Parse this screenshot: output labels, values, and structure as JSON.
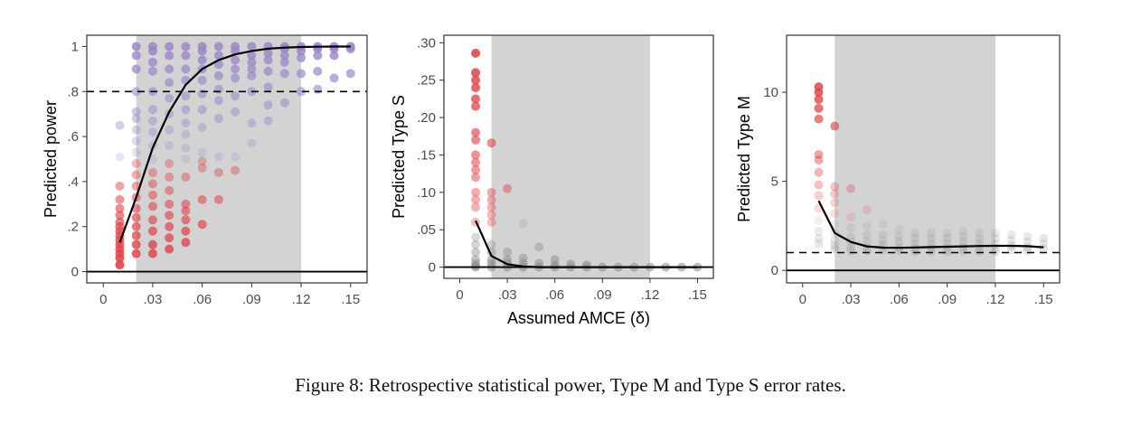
{
  "caption": "Figure 8: Retrospective statistical power, Type M and Type S error rates.",
  "colors": {
    "panel_border": "#333333",
    "shade": "#d3d3d3",
    "curve": "#000000",
    "low_points": "#e0474c",
    "high_points": "#9a86c9",
    "gray_points": "#8c8c8c"
  },
  "chart_data": [
    {
      "type": "scatter",
      "panel": "power",
      "title": "",
      "xlabel": "",
      "ylabel": "Predicted power",
      "xlim": [
        -0.01,
        0.16
      ],
      "ylim": [
        -0.05,
        1.05
      ],
      "x_ticks": [
        {
          "value": 0,
          "label": "0"
        },
        {
          "value": 0.03,
          "label": ".03"
        },
        {
          "value": 0.06,
          "label": ".06"
        },
        {
          "value": 0.09,
          "label": ".09"
        },
        {
          "value": 0.12,
          "label": ".12"
        },
        {
          "value": 0.15,
          "label": ".15"
        }
      ],
      "y_ticks": [
        {
          "value": 0,
          "label": "0"
        },
        {
          "value": 0.2,
          "label": ".2"
        },
        {
          "value": 0.4,
          "label": ".4"
        },
        {
          "value": 0.6,
          "label": ".6"
        },
        {
          "value": 0.8,
          "label": ".8"
        },
        {
          "value": 1,
          "label": "1"
        }
      ],
      "shaded_x_range": [
        0.02,
        0.12
      ],
      "hline_solid": 0,
      "hline_dashed": 0.8,
      "color_scale": "power",
      "curve": {
        "x": [
          0.01,
          0.02,
          0.03,
          0.04,
          0.05,
          0.06,
          0.07,
          0.08,
          0.09,
          0.1,
          0.11,
          0.12,
          0.13,
          0.14,
          0.15
        ],
        "y": [
          0.13,
          0.33,
          0.55,
          0.71,
          0.83,
          0.9,
          0.94,
          0.965,
          0.98,
          0.99,
          0.995,
          0.998,
          0.999,
          1.0,
          1.0
        ]
      },
      "points": [
        {
          "x": 0.01,
          "y": [
            0.03,
            0.06,
            0.08,
            0.1,
            0.12,
            0.14,
            0.16,
            0.18,
            0.2,
            0.22,
            0.25,
            0.28,
            0.32,
            0.38,
            0.51,
            0.65
          ]
        },
        {
          "x": 0.02,
          "y": [
            0.08,
            0.12,
            0.16,
            0.2,
            0.24,
            0.28,
            0.33,
            0.38,
            0.43,
            0.48,
            0.53,
            0.58,
            0.63,
            0.68,
            0.71,
            0.8,
            0.9,
            0.96,
            1.0
          ]
        },
        {
          "x": 0.03,
          "y": [
            0.08,
            0.12,
            0.18,
            0.23,
            0.29,
            0.34,
            0.39,
            0.44,
            0.5,
            0.56,
            0.62,
            0.67,
            0.72,
            0.8,
            0.89,
            0.93,
            0.98,
            1.0
          ]
        },
        {
          "x": 0.04,
          "y": [
            0.1,
            0.15,
            0.2,
            0.25,
            0.3,
            0.36,
            0.42,
            0.48,
            0.56,
            0.63,
            0.7,
            0.77,
            0.84,
            0.9,
            0.96,
            1.0
          ]
        },
        {
          "x": 0.05,
          "y": [
            0.13,
            0.18,
            0.23,
            0.27,
            0.3,
            0.42,
            0.5,
            0.55,
            0.61,
            0.66,
            0.72,
            0.78,
            0.85,
            0.9,
            0.96,
            1.0
          ]
        },
        {
          "x": 0.06,
          "y": [
            0.21,
            0.32,
            0.46,
            0.49,
            0.53,
            0.64,
            0.72,
            0.79,
            0.85,
            0.9,
            0.94,
            0.98,
            1.0
          ]
        },
        {
          "x": 0.07,
          "y": [
            0.32,
            0.44,
            0.51,
            0.68,
            0.76,
            0.81,
            0.87,
            0.92,
            0.96,
            1.0
          ]
        },
        {
          "x": 0.08,
          "y": [
            0.45,
            0.51,
            0.71,
            0.78,
            0.86,
            0.9,
            0.94,
            0.98,
            1.0
          ]
        },
        {
          "x": 0.09,
          "y": [
            0.57,
            0.66,
            0.8,
            0.87,
            0.9,
            0.93,
            0.96,
            1.0
          ]
        },
        {
          "x": 0.1,
          "y": [
            0.67,
            0.74,
            0.82,
            0.89,
            0.94,
            0.97,
            1.0
          ]
        },
        {
          "x": 0.11,
          "y": [
            0.75,
            0.88,
            0.93,
            0.96,
            0.99,
            1.0
          ]
        },
        {
          "x": 0.12,
          "y": [
            0.8,
            0.88,
            0.95,
            0.98,
            1.0
          ]
        },
        {
          "x": 0.13,
          "y": [
            0.81,
            0.89,
            0.96,
            0.99,
            1.0
          ]
        },
        {
          "x": 0.14,
          "y": [
            0.86,
            0.96,
            0.99,
            1.0
          ]
        },
        {
          "x": 0.15,
          "y": [
            0.88,
            0.99,
            1.0
          ]
        }
      ]
    },
    {
      "type": "scatter",
      "panel": "type_s",
      "title": "",
      "xlabel": "Assumed AMCE (δ)",
      "ylabel": "Predicted Type S",
      "xlim": [
        -0.01,
        0.16
      ],
      "ylim": [
        -0.015,
        0.31
      ],
      "x_ticks": [
        {
          "value": 0,
          "label": "0"
        },
        {
          "value": 0.03,
          "label": ".03"
        },
        {
          "value": 0.06,
          "label": ".06"
        },
        {
          "value": 0.09,
          "label": ".09"
        },
        {
          "value": 0.12,
          "label": ".12"
        },
        {
          "value": 0.15,
          "label": ".15"
        }
      ],
      "y_ticks": [
        {
          "value": 0,
          "label": "0"
        },
        {
          "value": 0.05,
          "label": ".05"
        },
        {
          "value": 0.1,
          "label": ".10"
        },
        {
          "value": 0.15,
          "label": ".15"
        },
        {
          "value": 0.2,
          "label": ".20"
        },
        {
          "value": 0.25,
          "label": ".25"
        },
        {
          "value": 0.3,
          "label": ".30"
        }
      ],
      "shaded_x_range": [
        0.02,
        0.12
      ],
      "hline_solid": 0,
      "color_scale": "type_s",
      "curve": {
        "x": [
          0.01,
          0.02,
          0.03,
          0.04,
          0.05,
          0.06,
          0.07,
          0.08,
          0.09,
          0.1,
          0.11,
          0.12,
          0.13,
          0.14,
          0.15
        ],
        "y": [
          0.062,
          0.015,
          0.004,
          0.001,
          0,
          0,
          0,
          0,
          0,
          0,
          0,
          0,
          0,
          0,
          0
        ]
      },
      "points": [
        {
          "x": 0.01,
          "y": [
            0.286,
            0.26,
            0.25,
            0.24,
            0.225,
            0.215,
            0.18,
            0.17,
            0.15,
            0.14,
            0.13,
            0.12,
            0.1,
            0.09,
            0.08,
            0.06,
            0.04,
            0.03,
            0.02,
            0.01,
            0.005,
            0.002,
            0
          ]
        },
        {
          "x": 0.02,
          "y": [
            0.166,
            0.1,
            0.09,
            0.08,
            0.07,
            0.06,
            0.03,
            0.02,
            0.01,
            0.005,
            0
          ]
        },
        {
          "x": 0.03,
          "y": [
            0.105,
            0.02,
            0.01,
            0.005,
            0
          ]
        },
        {
          "x": 0.04,
          "y": [
            0.058,
            0.012,
            0.005,
            0
          ]
        },
        {
          "x": 0.05,
          "y": [
            0.027,
            0.005,
            0
          ]
        },
        {
          "x": 0.06,
          "y": [
            0.01,
            0.003,
            0
          ]
        },
        {
          "x": 0.07,
          "y": [
            0.004,
            0
          ]
        },
        {
          "x": 0.08,
          "y": [
            0.003,
            0
          ]
        },
        {
          "x": 0.09,
          "y": [
            0
          ]
        },
        {
          "x": 0.1,
          "y": [
            0
          ]
        },
        {
          "x": 0.11,
          "y": [
            0
          ]
        },
        {
          "x": 0.12,
          "y": [
            0
          ]
        },
        {
          "x": 0.13,
          "y": [
            0
          ]
        },
        {
          "x": 0.14,
          "y": [
            0
          ]
        },
        {
          "x": 0.15,
          "y": [
            0
          ]
        }
      ]
    },
    {
      "type": "scatter",
      "panel": "type_m",
      "title": "",
      "xlabel": "",
      "ylabel": "Predicted Type M",
      "xlim": [
        -0.01,
        0.16
      ],
      "ylim": [
        -0.7,
        13.2
      ],
      "x_ticks": [
        {
          "value": 0,
          "label": "0"
        },
        {
          "value": 0.03,
          "label": ".03"
        },
        {
          "value": 0.06,
          "label": ".06"
        },
        {
          "value": 0.09,
          "label": ".09"
        },
        {
          "value": 0.12,
          "label": ".12"
        },
        {
          "value": 0.15,
          "label": ".15"
        }
      ],
      "y_ticks": [
        {
          "value": 0,
          "label": "0"
        },
        {
          "value": 5,
          "label": "5"
        },
        {
          "value": 10,
          "label": "10"
        }
      ],
      "shaded_x_range": [
        0.02,
        0.12
      ],
      "hline_solid": 0,
      "hline_dashed": 1,
      "color_scale": "type_m",
      "curve": {
        "x": [
          0.01,
          0.02,
          0.03,
          0.04,
          0.05,
          0.06,
          0.07,
          0.08,
          0.09,
          0.1,
          0.11,
          0.12,
          0.13,
          0.14,
          0.15
        ],
        "y": [
          3.9,
          2.1,
          1.6,
          1.35,
          1.28,
          1.27,
          1.29,
          1.31,
          1.33,
          1.35,
          1.37,
          1.38,
          1.38,
          1.36,
          1.3
        ]
      },
      "points": [
        {
          "x": 0.01,
          "y": [
            10.3,
            10.0,
            9.6,
            9.1,
            8.5,
            6.5,
            6.2,
            5.5,
            4.8,
            4.2,
            3.5,
            2.8,
            2.2,
            1.8,
            1.5
          ]
        },
        {
          "x": 0.02,
          "y": [
            8.1,
            4.7,
            4.3,
            3.8,
            3.2,
            2.6,
            2.1,
            1.7,
            1.4,
            1.2
          ]
        },
        {
          "x": 0.03,
          "y": [
            4.6,
            3.0,
            2.4,
            1.9,
            1.6,
            1.3,
            1.1
          ]
        },
        {
          "x": 0.04,
          "y": [
            3.4,
            2.5,
            2.0,
            1.6,
            1.3,
            1.1
          ]
        },
        {
          "x": 0.05,
          "y": [
            2.6,
            2.0,
            1.7,
            1.4,
            1.15
          ]
        },
        {
          "x": 0.06,
          "y": [
            2.3,
            1.9,
            1.6,
            1.3,
            1.1
          ]
        },
        {
          "x": 0.07,
          "y": [
            2.1,
            1.8,
            1.5,
            1.25,
            1.05
          ]
        },
        {
          "x": 0.08,
          "y": [
            2.1,
            1.8,
            1.5,
            1.25,
            1.05
          ]
        },
        {
          "x": 0.09,
          "y": [
            2.1,
            1.8,
            1.5,
            1.25,
            1.05
          ]
        },
        {
          "x": 0.1,
          "y": [
            2.2,
            1.9,
            1.6,
            1.3,
            1.1
          ]
        },
        {
          "x": 0.11,
          "y": [
            2.1,
            1.8,
            1.5,
            1.25,
            1.05
          ]
        },
        {
          "x": 0.12,
          "y": [
            2.1,
            1.8,
            1.5,
            1.25,
            1.05
          ]
        },
        {
          "x": 0.13,
          "y": [
            2.0,
            1.7,
            1.4,
            1.15
          ]
        },
        {
          "x": 0.14,
          "y": [
            1.9,
            1.6,
            1.3,
            1.1
          ]
        },
        {
          "x": 0.15,
          "y": [
            1.8,
            1.5,
            1.2
          ]
        }
      ]
    }
  ]
}
